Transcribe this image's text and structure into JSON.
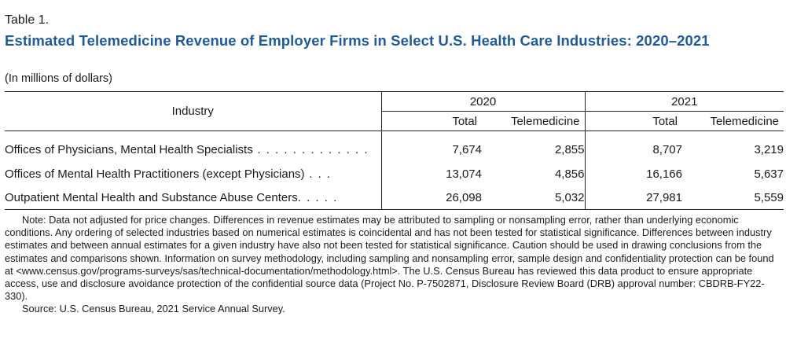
{
  "table_number": "Table 1.",
  "title": "Estimated Telemedicine Revenue of Employer Firms in Select U.S. Health Care Industries: 2020–2021",
  "subtitle": "(In millions of dollars)",
  "table": {
    "industry_header": "Industry",
    "years": [
      "2020",
      "2021"
    ],
    "subheaders": [
      "Total",
      "Telemedicine",
      "Total",
      "Telemedicine"
    ],
    "rows": [
      {
        "industry": "Offices of Physicians, Mental Health Specialists",
        "leader": " . . . . . . . . . . . . .",
        "values": [
          "7,674",
          "2,855",
          "8,707",
          "3,219"
        ]
      },
      {
        "industry": "Offices of Mental Health Practitioners (except Physicians)",
        "leader": " . . .",
        "values": [
          "13,074",
          "4,856",
          "16,166",
          "5,637"
        ]
      },
      {
        "industry": "Outpatient Mental Health and Substance Abuse Centers",
        "leader": ". . . . .",
        "values": [
          "26,098",
          "5,032",
          "27,981",
          "5,559"
        ]
      }
    ]
  },
  "note": "Note: Data not adjusted for price changes. Differences in revenue estimates may be attributed to sampling or nonsampling error, rather than underlying economic conditions. Any ordering of selected industries based on numerical estimates is coincidental and has not been tested for statistical significance. Differences between industry estimates and between annual estimates for a given industry have also not been tested for statistical significance. Caution should be used in drawing conclusions from the estimates and comparisons shown. Information on survey methodology, including sampling and nonsampling error, sample design and confidentiality protection can be found at <www.census.gov/programs-surveys/sas/technical-documentation/methodology.html>. The U.S. Census Bureau has reviewed this data product to ensure appropriate access, use and disclosure avoidance protection of the confidential source data (Project No. P-7502871, Disclosure Review Board (DRB) approval number: CBDRB-FY22-330).",
  "source": "Source: U.S. Census Bureau, 2021 Service Annual Survey.",
  "colors": {
    "title": "#1f5b9c",
    "text": "#1a1a1a",
    "rule": "#222222"
  }
}
